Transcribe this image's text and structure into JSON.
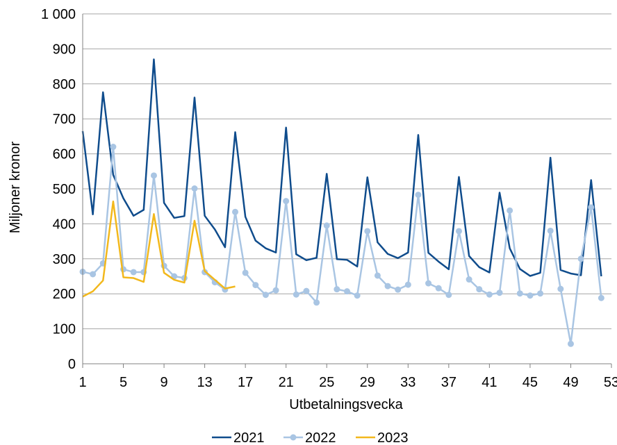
{
  "chart_data": {
    "type": "line",
    "title": "",
    "xlabel": "Utbetalningsvecka",
    "ylabel": "Miljoner kronor",
    "xlim": [
      1,
      53
    ],
    "ylim": [
      0,
      1000
    ],
    "x_ticks": [
      1,
      5,
      9,
      13,
      17,
      21,
      25,
      29,
      33,
      37,
      41,
      45,
      49,
      53
    ],
    "x_tick_labels": [
      "1",
      "5",
      "9",
      "13",
      "17",
      "21",
      "25",
      "29",
      "33",
      "37",
      "41",
      "45",
      "49",
      "53"
    ],
    "y_ticks": [
      0,
      100,
      200,
      300,
      400,
      500,
      600,
      700,
      800,
      900,
      1000
    ],
    "y_tick_labels": [
      "0",
      "100",
      "200",
      "300",
      "400",
      "500",
      "600",
      "700",
      "800",
      "900",
      "1 000"
    ],
    "grid": "horizontal",
    "legend_position": "bottom",
    "series": [
      {
        "name": "2021",
        "color": "#0f4c8c",
        "markers": false,
        "x": [
          1,
          2,
          3,
          4,
          5,
          6,
          7,
          8,
          9,
          10,
          11,
          12,
          13,
          14,
          15,
          16,
          17,
          18,
          19,
          20,
          21,
          22,
          23,
          24,
          25,
          26,
          27,
          28,
          29,
          30,
          31,
          32,
          33,
          34,
          35,
          36,
          37,
          38,
          39,
          40,
          41,
          42,
          43,
          44,
          45,
          46,
          47,
          48,
          49,
          50,
          51,
          52
        ],
        "values": [
          665,
          427,
          776,
          540,
          473,
          423,
          440,
          870,
          460,
          417,
          422,
          761,
          423,
          384,
          333,
          662,
          420,
          352,
          330,
          318,
          675,
          313,
          296,
          303,
          543,
          299,
          297,
          278,
          533,
          347,
          314,
          302,
          318,
          654,
          317,
          292,
          270,
          534,
          308,
          276,
          261,
          489,
          330,
          271,
          251,
          260,
          589,
          268,
          258,
          253,
          525,
          250
        ]
      },
      {
        "name": "2022",
        "color": "#a9c5e3",
        "markers": true,
        "x": [
          1,
          2,
          3,
          4,
          5,
          6,
          7,
          8,
          9,
          10,
          11,
          12,
          13,
          14,
          15,
          16,
          17,
          18,
          19,
          20,
          21,
          22,
          23,
          24,
          25,
          26,
          27,
          28,
          29,
          30,
          31,
          32,
          33,
          34,
          35,
          36,
          37,
          38,
          39,
          40,
          41,
          42,
          43,
          44,
          45,
          46,
          47,
          48,
          49,
          50,
          51,
          52
        ],
        "values": [
          263,
          256,
          287,
          620,
          270,
          262,
          262,
          538,
          280,
          250,
          245,
          501,
          262,
          233,
          212,
          434,
          260,
          225,
          197,
          210,
          465,
          198,
          208,
          175,
          395,
          213,
          207,
          195,
          379,
          252,
          222,
          212,
          226,
          483,
          230,
          216,
          197,
          379,
          241,
          213,
          198,
          203,
          438,
          201,
          195,
          201,
          380,
          214,
          57,
          300,
          447,
          188
        ]
      },
      {
        "name": "2023",
        "color": "#f2b81c",
        "markers": false,
        "x": [
          1,
          2,
          3,
          4,
          5,
          6,
          7,
          8,
          9,
          10,
          11,
          12,
          13,
          14,
          15,
          16
        ],
        "values": [
          192,
          207,
          238,
          464,
          247,
          245,
          234,
          428,
          260,
          240,
          232,
          409,
          265,
          240,
          215,
          221
        ]
      }
    ]
  }
}
